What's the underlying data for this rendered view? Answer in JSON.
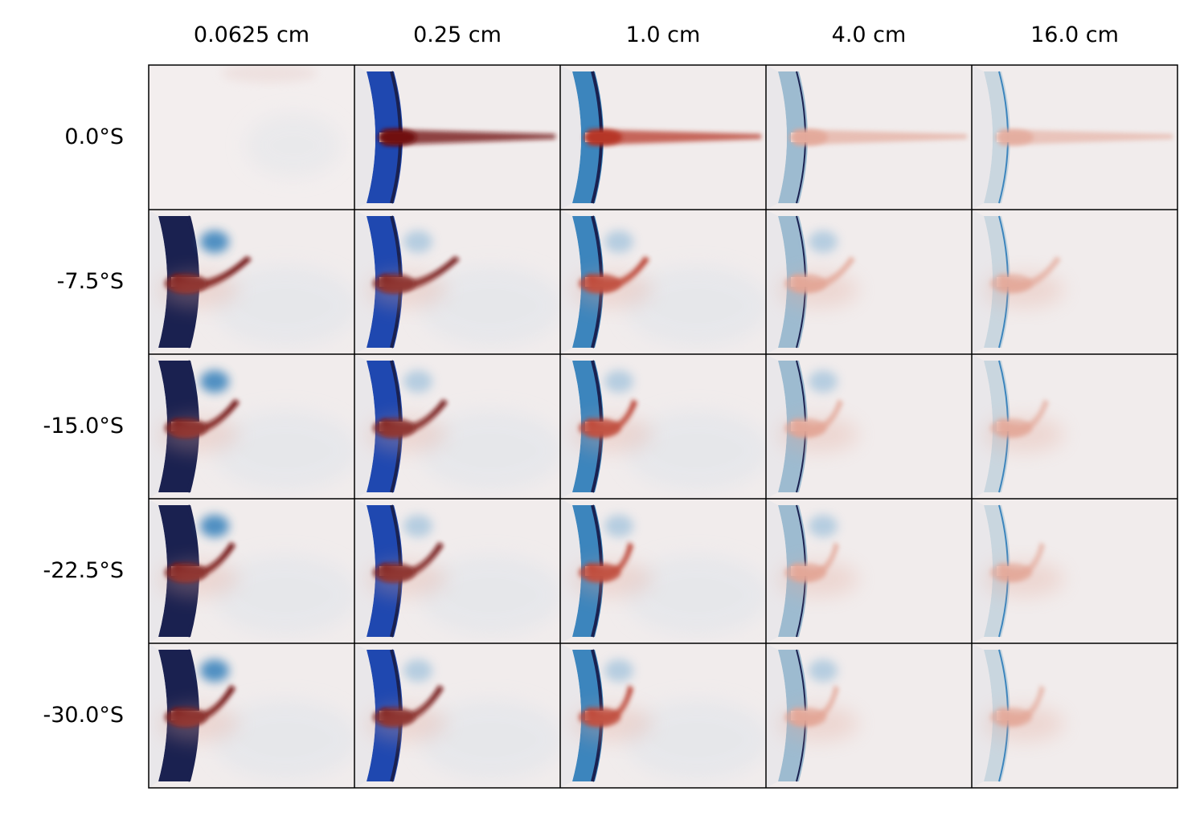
{
  "figure": {
    "columns": [
      {
        "label": "0.0625 cm"
      },
      {
        "label": "0.25 cm"
      },
      {
        "label": "1.0 cm"
      },
      {
        "label": "4.0 cm"
      },
      {
        "label": "16.0 cm"
      }
    ],
    "rows": [
      {
        "label": "0.0°S"
      },
      {
        "label": "-7.5°S"
      },
      {
        "label": "-15.0°S"
      },
      {
        "label": "-22.5°S"
      },
      {
        "label": "-30.0°S"
      }
    ],
    "colors": {
      "background_field": "#f1ecec",
      "strong_blue": "#1a2150",
      "mid_blue": "#1f48b0",
      "light_blue": "#3c85bd",
      "pale_blue": "#9dbbd0",
      "faint_blue": "#c9d6df",
      "strong_red": "#6f0d0d",
      "mid_red": "#b53222",
      "pale_red": "#e3a595"
    }
  }
}
